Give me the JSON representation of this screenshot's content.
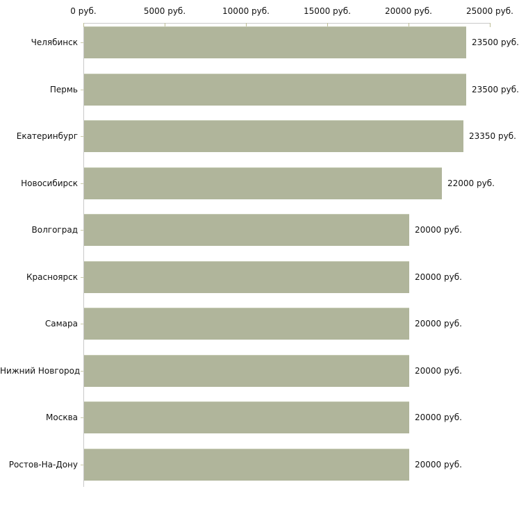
{
  "chart_data": {
    "type": "bar",
    "orientation": "horizontal",
    "title": "",
    "xlabel": "",
    "ylabel": "",
    "unit": "руб.",
    "categories": [
      "Челябинск",
      "Пермь",
      "Екатеринбург",
      "Новосибирск",
      "Волгоград",
      "Красноярск",
      "Самара",
      "Нижний Новгород",
      "Москва",
      "Ростов-На-Дону"
    ],
    "values": [
      23500,
      23500,
      23350,
      22000,
      20000,
      20000,
      20000,
      20000,
      20000,
      20000
    ],
    "value_labels": [
      "23500 руб.",
      "23500 руб.",
      "23350 руб.",
      "22000 руб.",
      "20000 руб.",
      "20000 руб.",
      "20000 руб.",
      "20000 руб.",
      "20000 руб.",
      "20000 руб."
    ],
    "x_tick_labels": [
      "0 руб.",
      "5000 руб.",
      "10000 руб.",
      "15000 руб.",
      "20000 руб.",
      "25000 руб."
    ],
    "x_tick_values": [
      0,
      5000,
      10000,
      15000,
      20000,
      25000
    ],
    "xlim": [
      0,
      25000
    ],
    "grid": false,
    "legend": false,
    "axis_position": "top",
    "colors": {
      "bar_fill": "#b0b59b",
      "axis_line": "#c9c9c9",
      "x_tick": "#bdbd94",
      "y_tick": "#c9c9a8",
      "text": "#111111",
      "background": "#ffffff"
    }
  }
}
